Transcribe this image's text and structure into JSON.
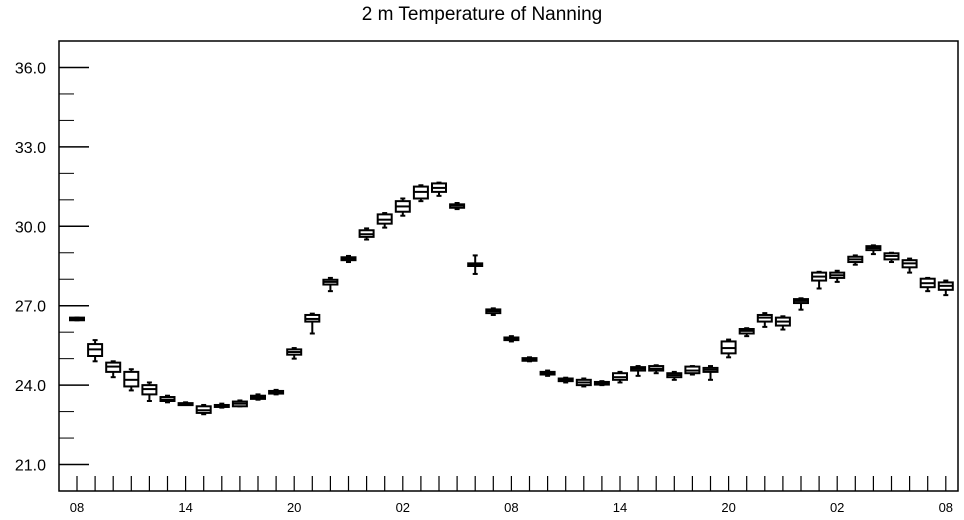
{
  "chart_data": {
    "type": "box",
    "title": "2 m Temperature of Nanning",
    "xlabel": "",
    "ylabel": "",
    "ylim": [
      20.0,
      37.0
    ],
    "yticks": [
      21.0,
      24.0,
      27.0,
      30.0,
      33.0,
      36.0
    ],
    "ytick_labels": [
      "21.0",
      "24.0",
      "27.0",
      "30.0",
      "33.0",
      "36.0"
    ],
    "y_minor_step": 1.0,
    "x_hours": [
      8,
      9,
      10,
      11,
      12,
      13,
      14,
      15,
      16,
      17,
      18,
      19,
      20,
      21,
      22,
      23,
      0,
      1,
      2,
      3,
      4,
      5,
      6,
      7,
      8,
      9,
      10,
      11,
      12,
      13,
      14,
      15,
      16,
      17,
      18,
      19,
      20,
      21,
      22,
      23,
      0,
      1,
      2,
      3,
      4,
      5,
      6,
      7,
      8
    ],
    "xtick_labels": [
      "08",
      "14",
      "20",
      "02",
      "08",
      "14",
      "20",
      "02",
      "08"
    ],
    "xtick_positions": [
      0,
      6,
      12,
      18,
      24,
      30,
      36,
      42,
      48
    ],
    "boxes": [
      {
        "x": 0,
        "min": 26.45,
        "q1": 26.45,
        "median": 26.5,
        "q3": 26.55,
        "max": 26.55
      },
      {
        "x": 1,
        "min": 24.9,
        "q1": 25.1,
        "median": 25.35,
        "q3": 25.55,
        "max": 25.7
      },
      {
        "x": 2,
        "min": 24.3,
        "q1": 24.5,
        "median": 24.7,
        "q3": 24.85,
        "max": 24.9
      },
      {
        "x": 3,
        "min": 23.8,
        "q1": 23.95,
        "median": 24.2,
        "q3": 24.5,
        "max": 24.6
      },
      {
        "x": 4,
        "min": 23.4,
        "q1": 23.65,
        "median": 23.85,
        "q3": 24.0,
        "max": 24.1
      },
      {
        "x": 5,
        "min": 23.35,
        "q1": 23.4,
        "median": 23.45,
        "q3": 23.55,
        "max": 23.6
      },
      {
        "x": 6,
        "min": 23.25,
        "q1": 23.28,
        "median": 23.3,
        "q3": 23.32,
        "max": 23.35
      },
      {
        "x": 7,
        "min": 22.9,
        "q1": 22.95,
        "median": 23.05,
        "q3": 23.2,
        "max": 23.25
      },
      {
        "x": 8,
        "min": 23.15,
        "q1": 23.18,
        "median": 23.2,
        "q3": 23.25,
        "max": 23.3
      },
      {
        "x": 9,
        "min": 23.2,
        "q1": 23.2,
        "median": 23.3,
        "q3": 23.38,
        "max": 23.42
      },
      {
        "x": 10,
        "min": 23.45,
        "q1": 23.48,
        "median": 23.55,
        "q3": 23.6,
        "max": 23.65
      },
      {
        "x": 11,
        "min": 23.65,
        "q1": 23.68,
        "median": 23.72,
        "q3": 23.78,
        "max": 23.82
      },
      {
        "x": 12,
        "min": 25.0,
        "q1": 25.15,
        "median": 25.25,
        "q3": 25.35,
        "max": 25.4
      },
      {
        "x": 13,
        "min": 25.95,
        "q1": 26.4,
        "median": 26.5,
        "q3": 26.65,
        "max": 26.7
      },
      {
        "x": 14,
        "min": 27.55,
        "q1": 27.8,
        "median": 27.9,
        "q3": 27.98,
        "max": 28.05
      },
      {
        "x": 15,
        "min": 28.65,
        "q1": 28.72,
        "median": 28.78,
        "q3": 28.83,
        "max": 28.88
      },
      {
        "x": 16,
        "min": 29.5,
        "q1": 29.6,
        "median": 29.7,
        "q3": 29.85,
        "max": 29.92
      },
      {
        "x": 17,
        "min": 29.95,
        "q1": 30.1,
        "median": 30.25,
        "q3": 30.45,
        "max": 30.5
      },
      {
        "x": 18,
        "min": 30.4,
        "q1": 30.55,
        "median": 30.75,
        "q3": 30.95,
        "max": 31.05
      },
      {
        "x": 19,
        "min": 30.95,
        "q1": 31.05,
        "median": 31.3,
        "q3": 31.5,
        "max": 31.55
      },
      {
        "x": 20,
        "min": 31.15,
        "q1": 31.3,
        "median": 31.45,
        "q3": 31.62,
        "max": 31.65
      },
      {
        "x": 21,
        "min": 30.65,
        "q1": 30.7,
        "median": 30.78,
        "q3": 30.83,
        "max": 30.88
      },
      {
        "x": 22,
        "min": 28.2,
        "q1": 28.5,
        "median": 28.55,
        "q3": 28.6,
        "max": 28.9
      },
      {
        "x": 23,
        "min": 26.65,
        "q1": 26.72,
        "median": 26.8,
        "q3": 26.86,
        "max": 26.9
      },
      {
        "x": 24,
        "min": 25.65,
        "q1": 25.7,
        "median": 25.75,
        "q3": 25.8,
        "max": 25.85
      },
      {
        "x": 25,
        "min": 24.9,
        "q1": 24.92,
        "median": 24.97,
        "q3": 25.02,
        "max": 25.05
      },
      {
        "x": 26,
        "min": 24.35,
        "q1": 24.4,
        "median": 24.45,
        "q3": 24.5,
        "max": 24.55
      },
      {
        "x": 27,
        "min": 24.1,
        "q1": 24.15,
        "median": 24.2,
        "q3": 24.25,
        "max": 24.28
      },
      {
        "x": 28,
        "min": 23.95,
        "q1": 24.0,
        "median": 24.1,
        "q3": 24.2,
        "max": 24.25
      },
      {
        "x": 29,
        "min": 24.0,
        "q1": 24.02,
        "median": 24.07,
        "q3": 24.12,
        "max": 24.15
      },
      {
        "x": 30,
        "min": 24.1,
        "q1": 24.2,
        "median": 24.3,
        "q3": 24.45,
        "max": 24.5
      },
      {
        "x": 31,
        "min": 24.35,
        "q1": 24.55,
        "median": 24.62,
        "q3": 24.68,
        "max": 24.72
      },
      {
        "x": 32,
        "min": 24.45,
        "q1": 24.55,
        "median": 24.62,
        "q3": 24.72,
        "max": 24.75
      },
      {
        "x": 33,
        "min": 24.2,
        "q1": 24.3,
        "median": 24.38,
        "q3": 24.45,
        "max": 24.5
      },
      {
        "x": 34,
        "min": 24.4,
        "q1": 24.45,
        "median": 24.55,
        "q3": 24.7,
        "max": 24.72
      },
      {
        "x": 35,
        "min": 24.2,
        "q1": 24.5,
        "median": 24.58,
        "q3": 24.65,
        "max": 24.72
      },
      {
        "x": 36,
        "min": 25.05,
        "q1": 25.2,
        "median": 25.4,
        "q3": 25.65,
        "max": 25.72
      },
      {
        "x": 37,
        "min": 25.85,
        "q1": 25.95,
        "median": 26.05,
        "q3": 26.12,
        "max": 26.15
      },
      {
        "x": 38,
        "min": 26.2,
        "q1": 26.4,
        "median": 26.55,
        "q3": 26.65,
        "max": 26.72
      },
      {
        "x": 39,
        "min": 26.1,
        "q1": 26.25,
        "median": 26.4,
        "q3": 26.55,
        "max": 26.6
      },
      {
        "x": 40,
        "min": 26.85,
        "q1": 27.1,
        "median": 27.18,
        "q3": 27.25,
        "max": 27.28
      },
      {
        "x": 41,
        "min": 27.65,
        "q1": 27.95,
        "median": 28.1,
        "q3": 28.25,
        "max": 28.28
      },
      {
        "x": 42,
        "min": 27.9,
        "q1": 28.05,
        "median": 28.15,
        "q3": 28.25,
        "max": 28.32
      },
      {
        "x": 43,
        "min": 28.55,
        "q1": 28.65,
        "median": 28.75,
        "q3": 28.85,
        "max": 28.9
      },
      {
        "x": 44,
        "min": 28.95,
        "q1": 29.1,
        "median": 29.18,
        "q3": 29.25,
        "max": 29.28
      },
      {
        "x": 45,
        "min": 28.65,
        "q1": 28.75,
        "median": 28.88,
        "q3": 28.98,
        "max": 29.0
      },
      {
        "x": 46,
        "min": 28.25,
        "q1": 28.45,
        "median": 28.6,
        "q3": 28.72,
        "max": 28.78
      },
      {
        "x": 47,
        "min": 27.55,
        "q1": 27.7,
        "median": 27.85,
        "q3": 28.02,
        "max": 28.05
      },
      {
        "x": 48,
        "min": 27.4,
        "q1": 27.6,
        "median": 27.75,
        "q3": 27.88,
        "max": 27.95
      }
    ],
    "grid": false,
    "colors": {
      "box": "#000000",
      "axis": "#000000",
      "background": "#ffffff"
    }
  }
}
